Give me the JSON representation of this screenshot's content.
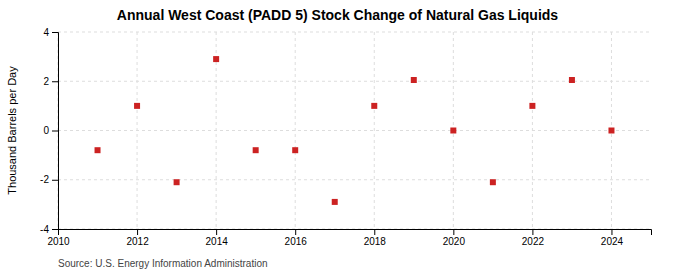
{
  "chart_data": {
    "type": "scatter",
    "title": "Annual West Coast (PADD 5) Stock Change of Natural Gas Liquids",
    "ylabel": "Thousand Barrels per Day",
    "annotations": [
      "Source: U.S. Energy Information Administration"
    ],
    "x": [
      2011,
      2012,
      2013,
      2014,
      2015,
      2016,
      2017,
      2018,
      2019,
      2020,
      2021,
      2022,
      2023,
      2024
    ],
    "values": [
      -0.8,
      1.0,
      -2.1,
      2.9,
      -0.8,
      -0.8,
      -2.9,
      1.0,
      2.05,
      0.0,
      -2.1,
      1.0,
      2.05,
      0.0
    ],
    "color": "#cc2222",
    "marker": "square",
    "xlim": [
      2010,
      2025
    ],
    "xticks": [
      2010,
      2012,
      2014,
      2016,
      2018,
      2020,
      2022,
      2024
    ],
    "ylim": [
      -4,
      4
    ],
    "yticks": [
      -4,
      -2,
      0,
      2,
      4
    ],
    "grid": true
  }
}
